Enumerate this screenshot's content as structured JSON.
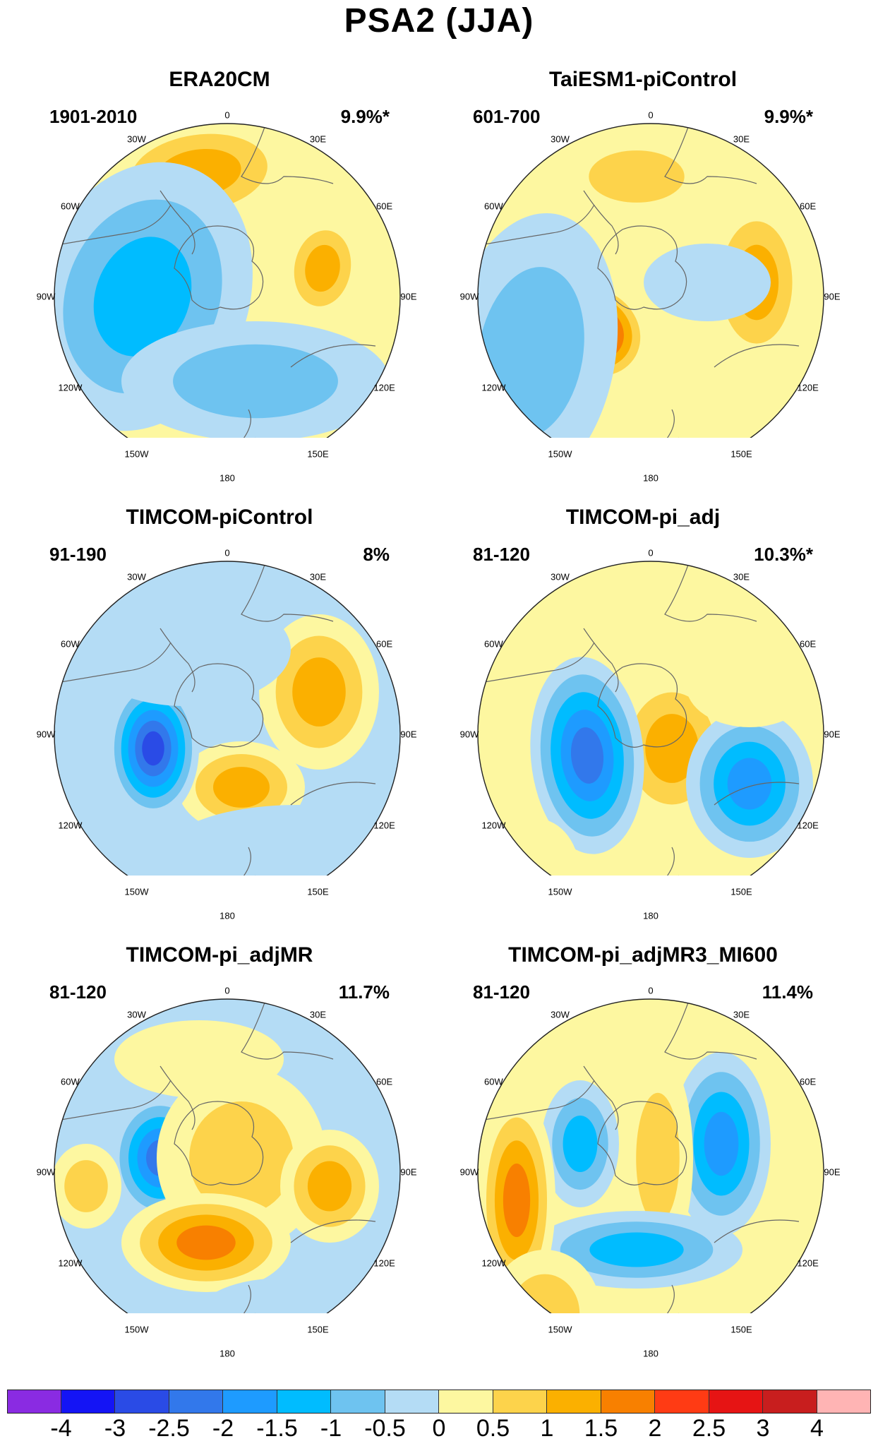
{
  "title": "PSA2 (JJA)",
  "colors": {
    "levels": [
      "#8a2be2",
      "#1414f5",
      "#2a4be6",
      "#3278eb",
      "#1e9bff",
      "#00bcff",
      "#6ec3f0",
      "#b4dcf5",
      "#fdf7a0",
      "#fdd34b",
      "#fbb000",
      "#f88000",
      "#ff3b14",
      "#e61414",
      "#c81e1e",
      "#ffb4b4"
    ],
    "coast": "#666666"
  },
  "colorbar": {
    "labels": [
      "-4",
      "-3",
      "-2.5",
      "-2",
      "-1.5",
      "-1",
      "-0.5",
      "0",
      "0.5",
      "1",
      "1.5",
      "2",
      "2.5",
      "3",
      "4"
    ]
  },
  "lon_labels": [
    "0",
    "30E",
    "60E",
    "90E",
    "120E",
    "150E",
    "180",
    "150W",
    "120W",
    "90W",
    "60W",
    "30W"
  ],
  "panels": [
    {
      "name": "ERA20CM",
      "period": "1901-2010",
      "variance": "9.9%*"
    },
    {
      "name": "TaiESM1-piControl",
      "period": "601-700",
      "variance": "9.9%*"
    },
    {
      "name": "TIMCOM-piControl",
      "period": "91-190",
      "variance": "8%"
    },
    {
      "name": "TIMCOM-pi_adj",
      "period": "81-120",
      "variance": "10.3%*"
    },
    {
      "name": "TIMCOM-pi_adjMR",
      "period": "81-120",
      "variance": "11.7%"
    },
    {
      "name": "TIMCOM-pi_adjMR3_MI600",
      "period": "81-120",
      "variance": "11.4%"
    }
  ]
}
